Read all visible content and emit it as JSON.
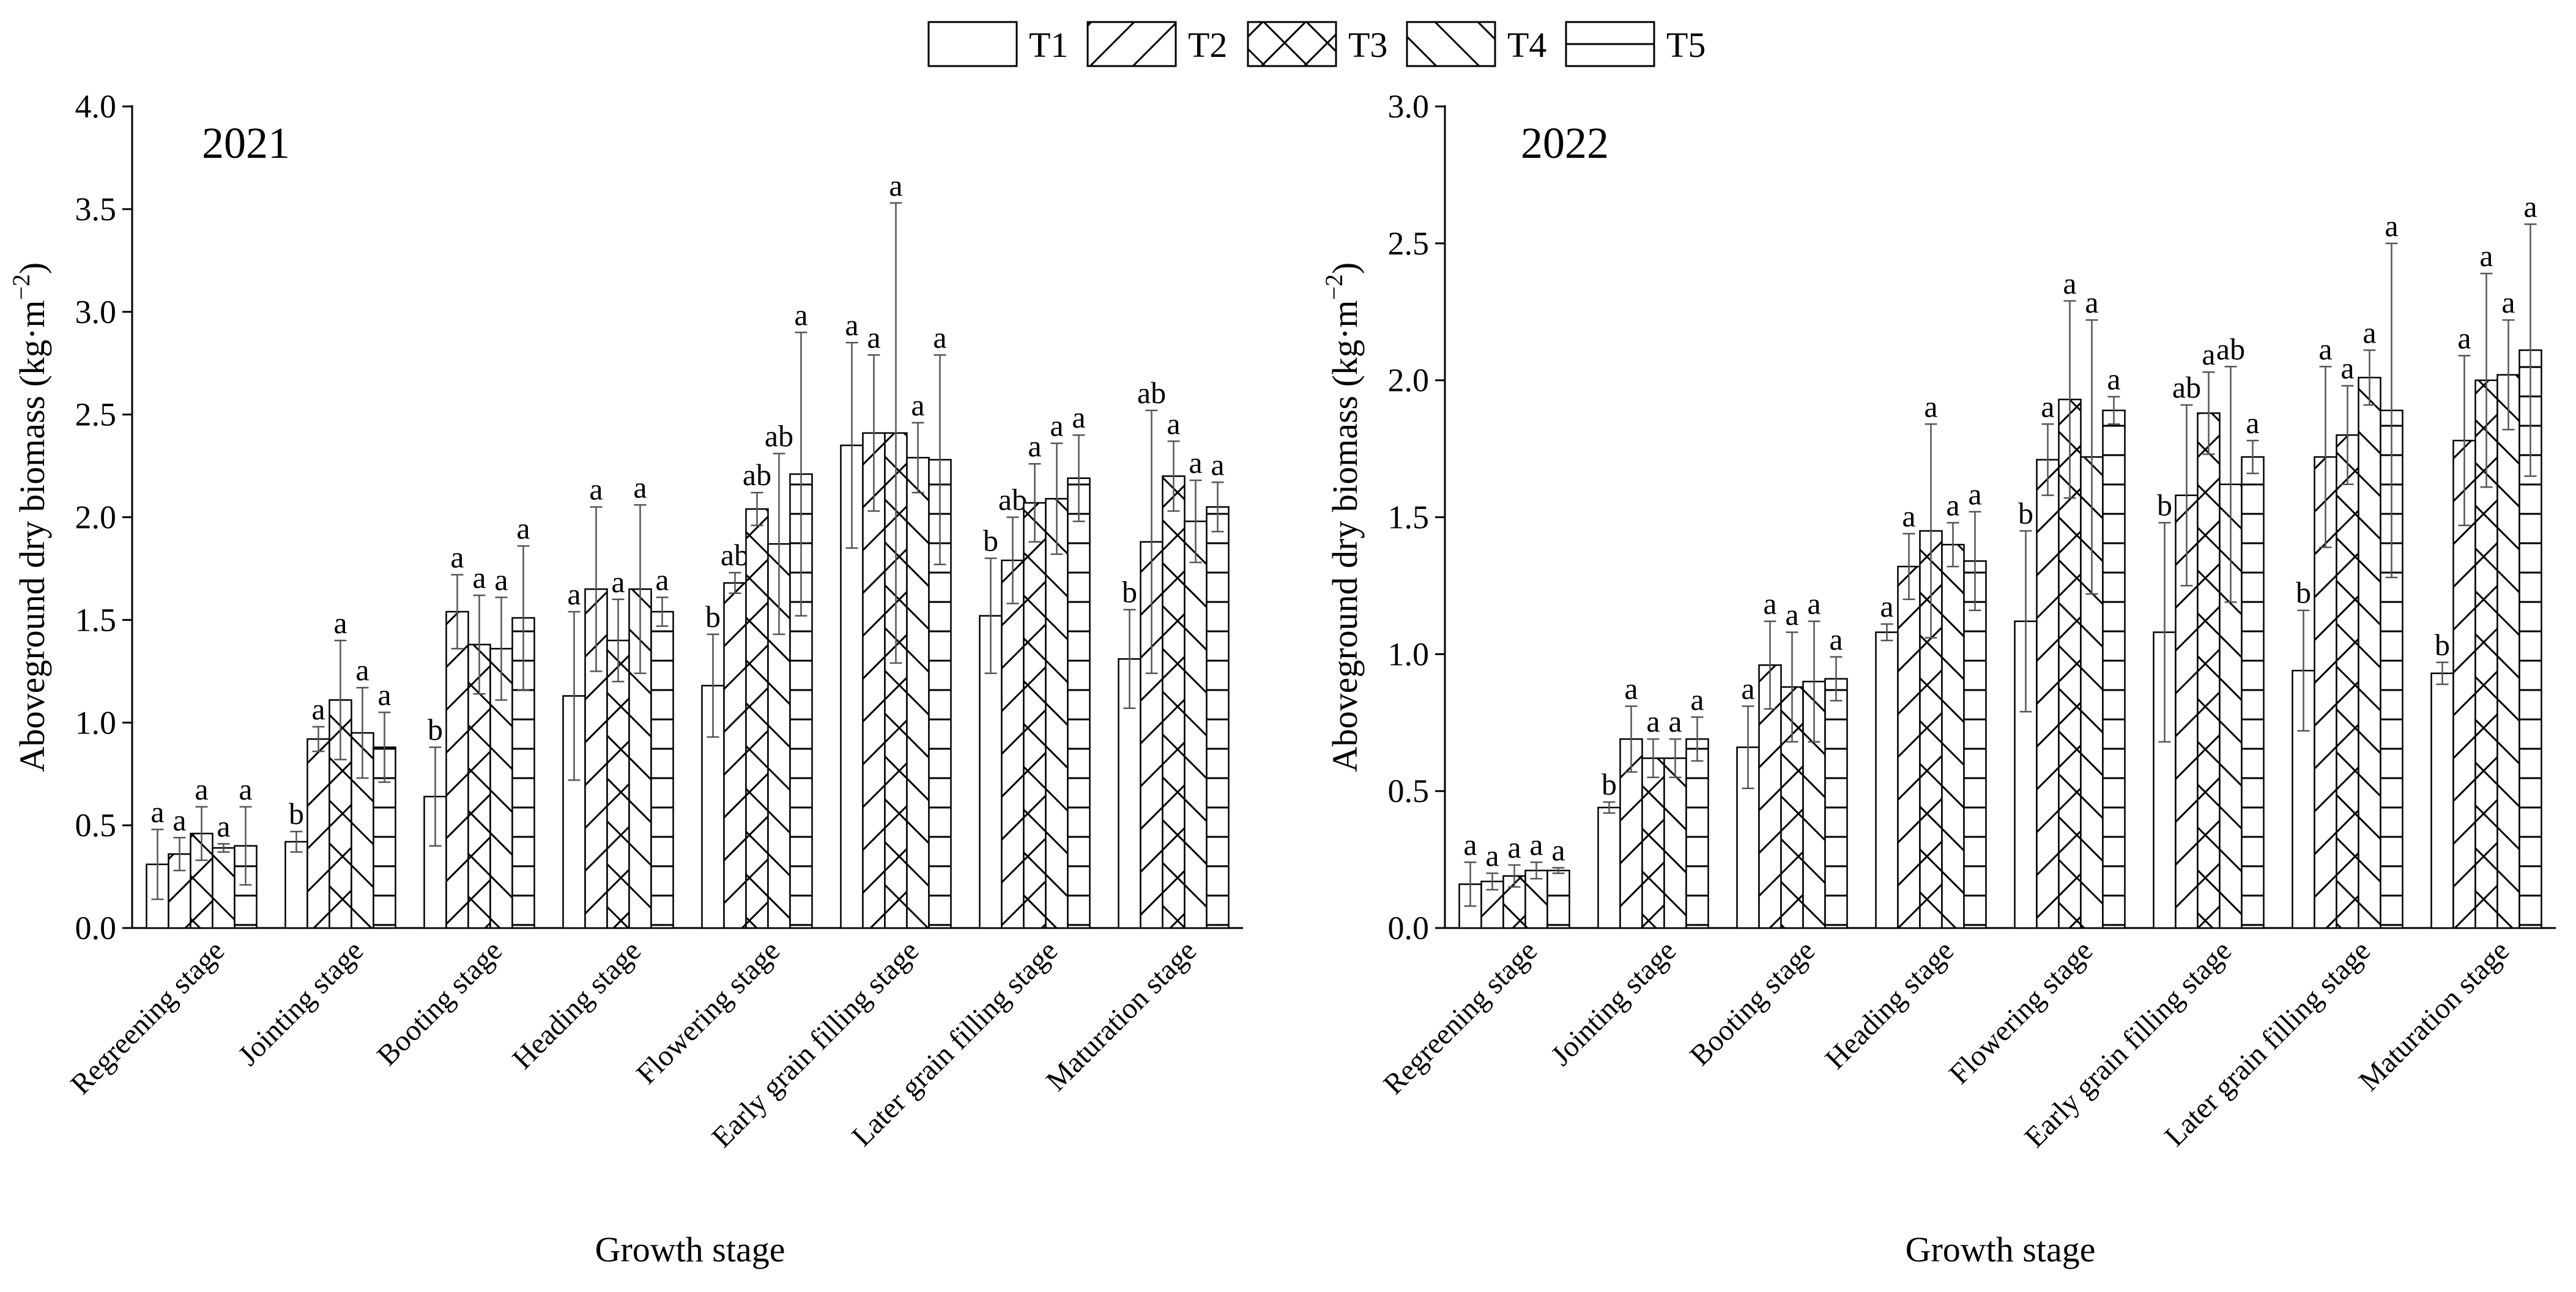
{
  "chart_data": {
    "type": "bar",
    "legend": {
      "entries": [
        {
          "name": "T1",
          "pattern": "blank"
        },
        {
          "name": "T2",
          "pattern": "forward-diagonal"
        },
        {
          "name": "T3",
          "pattern": "cross-hatch"
        },
        {
          "name": "T4",
          "pattern": "backward-diagonal"
        },
        {
          "name": "T5",
          "pattern": "horizontal"
        }
      ],
      "placement": "top-center"
    },
    "panels": [
      {
        "year": "2021",
        "xlabel": "Growth stage",
        "ylabel_main": "Aboveground dry biomass (kg·m",
        "ylabel_sup": "−2",
        "ylabel_close": ")",
        "ylim": [
          0,
          4.0
        ],
        "yticks": [
          "0.0",
          "0.5",
          "1.0",
          "1.5",
          "2.0",
          "2.5",
          "3.0",
          "3.5",
          "4.0"
        ],
        "categories": [
          "Regreening stage",
          "Jointing stage",
          "Booting stage",
          "Heading stage",
          "Flowering stage",
          "Early grain filling stage",
          "Later grain filling stage",
          "Maturation stage"
        ],
        "series": [
          {
            "name": "T1",
            "values": [
              0.31,
              0.42,
              0.64,
              1.13,
              1.18,
              2.35,
              1.52,
              1.31
            ],
            "errors": [
              0.17,
              0.05,
              0.24,
              0.41,
              0.25,
              0.5,
              0.28,
              0.24
            ],
            "labels": [
              "a",
              "b",
              "b",
              "a",
              "b",
              "a",
              "b",
              "b"
            ]
          },
          {
            "name": "T2",
            "values": [
              0.36,
              0.92,
              1.54,
              1.65,
              1.68,
              2.41,
              1.79,
              1.88
            ],
            "errors": [
              0.08,
              0.06,
              0.18,
              0.4,
              0.05,
              0.38,
              0.21,
              0.64
            ],
            "labels": [
              "a",
              "a",
              "a",
              "a",
              "ab",
              "a",
              "ab",
              "ab"
            ]
          },
          {
            "name": "T3",
            "values": [
              0.46,
              1.11,
              1.38,
              1.4,
              2.04,
              2.41,
              2.07,
              2.2
            ],
            "errors": [
              0.13,
              0.29,
              0.24,
              0.2,
              0.08,
              1.12,
              0.19,
              0.17
            ],
            "labels": [
              "a",
              "a",
              "a",
              "a",
              "ab",
              "a",
              "a",
              "a"
            ]
          },
          {
            "name": "T4",
            "values": [
              0.39,
              0.95,
              1.36,
              1.65,
              1.87,
              2.29,
              2.09,
              1.98
            ],
            "errors": [
              0.02,
              0.22,
              0.25,
              0.41,
              0.44,
              0.17,
              0.27,
              0.2
            ],
            "labels": [
              "a",
              "a",
              "a",
              "a",
              "ab",
              "a",
              "a",
              "a"
            ]
          },
          {
            "name": "T5",
            "values": [
              0.4,
              0.88,
              1.51,
              1.54,
              2.21,
              2.28,
              2.19,
              2.05
            ],
            "errors": [
              0.19,
              0.17,
              0.35,
              0.07,
              0.69,
              0.51,
              0.21,
              0.12
            ],
            "labels": [
              "a",
              "a",
              "a",
              "a",
              "a",
              "a",
              "a",
              "a"
            ]
          }
        ]
      },
      {
        "year": "2022",
        "xlabel": "Growth stage",
        "ylabel_main": "Aboveground dry biomass (kg·m",
        "ylabel_sup": "−2",
        "ylabel_close": ")",
        "ylim": [
          0,
          3.0
        ],
        "yticks": [
          "0.0",
          "0.5",
          "1.0",
          "1.5",
          "2.0",
          "2.5",
          "3.0"
        ],
        "categories": [
          "Regreening stage",
          "Jointing stage",
          "Booting stage",
          "Heading stage",
          "Flowering stage",
          "Early grain filling stage",
          "Later grain filling stage",
          "Maturation stage"
        ],
        "series": [
          {
            "name": "T1",
            "values": [
              0.16,
              0.44,
              0.66,
              1.08,
              1.12,
              1.08,
              0.94,
              0.93
            ],
            "errors": [
              0.08,
              0.02,
              0.15,
              0.03,
              0.33,
              0.4,
              0.22,
              0.04
            ],
            "labels": [
              "a",
              "b",
              "a",
              "a",
              "b",
              "b",
              "b",
              "b"
            ]
          },
          {
            "name": "T2",
            "values": [
              0.17,
              0.69,
              0.96,
              1.32,
              1.71,
              1.58,
              1.72,
              1.78
            ],
            "errors": [
              0.03,
              0.12,
              0.16,
              0.12,
              0.13,
              0.33,
              0.33,
              0.31
            ],
            "labels": [
              "a",
              "a",
              "a",
              "a",
              "a",
              "ab",
              "a",
              "a"
            ]
          },
          {
            "name": "T3",
            "values": [
              0.19,
              0.62,
              0.88,
              1.45,
              1.93,
              1.88,
              1.8,
              2.0
            ],
            "errors": [
              0.04,
              0.07,
              0.2,
              0.39,
              0.36,
              0.15,
              0.18,
              0.39
            ],
            "labels": [
              "a",
              "a",
              "a",
              "a",
              "a",
              "a",
              "a",
              "a"
            ]
          },
          {
            "name": "T4",
            "values": [
              0.21,
              0.62,
              0.9,
              1.4,
              1.72,
              1.62,
              2.01,
              2.02
            ],
            "errors": [
              0.03,
              0.07,
              0.22,
              0.08,
              0.5,
              0.43,
              0.1,
              0.2
            ],
            "labels": [
              "a",
              "a",
              "a",
              "a",
              "a",
              "ab",
              "a",
              "a"
            ]
          },
          {
            "name": "T5",
            "values": [
              0.21,
              0.69,
              0.91,
              1.34,
              1.89,
              1.72,
              1.89,
              2.11
            ],
            "errors": [
              0.01,
              0.08,
              0.08,
              0.18,
              0.05,
              0.06,
              0.61,
              0.46
            ],
            "labels": [
              "a",
              "a",
              "a",
              "a",
              "a",
              "a",
              "a",
              "a"
            ]
          }
        ]
      }
    ]
  }
}
